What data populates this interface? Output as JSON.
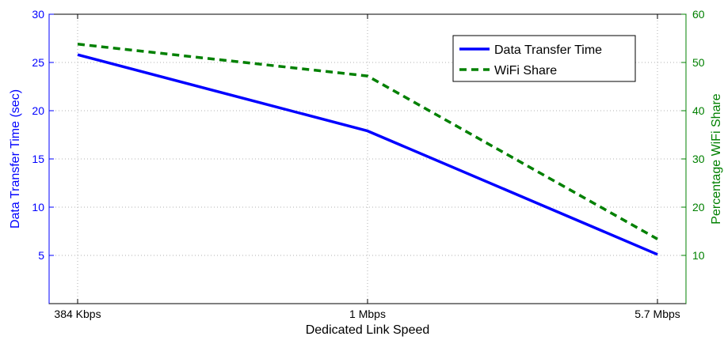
{
  "chart_data": {
    "type": "line",
    "title": "",
    "xlabel": "Dedicated Link Speed",
    "ylabel_left": "Data Transfer Time (sec)",
    "ylabel_right": "Percentage WiFi Share",
    "categories": [
      "384 Kbps",
      "1 Mbps",
      "5.7 Mbps"
    ],
    "y_left_lim": [
      0,
      30
    ],
    "y_left_ticks": [
      5,
      10,
      15,
      20,
      25,
      30
    ],
    "y_right_lim": [
      0,
      60
    ],
    "y_right_ticks": [
      10,
      20,
      30,
      40,
      50,
      60
    ],
    "grid": true,
    "legend_position": "top-right",
    "series": [
      {
        "name": "Data Transfer Time",
        "axis": "left",
        "values": [
          25.8,
          17.9,
          5.1
        ],
        "color": "#0000ff",
        "style": "solid"
      },
      {
        "name": "WiFi Share",
        "axis": "right",
        "values": [
          53.8,
          47.2,
          13.4
        ],
        "color": "#008000",
        "style": "dashed"
      }
    ],
    "colors": {
      "left_axis": "#0000ff",
      "right_axis": "#008000",
      "x_axis": "#000000"
    }
  }
}
